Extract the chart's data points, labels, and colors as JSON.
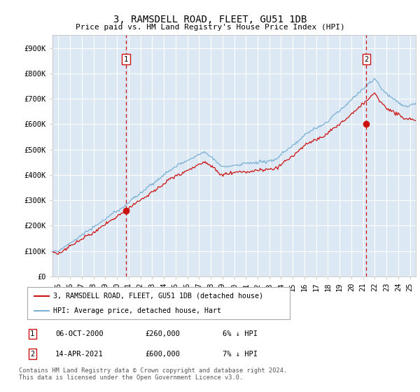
{
  "title": "3, RAMSDELL ROAD, FLEET, GU51 1DB",
  "subtitle": "Price paid vs. HM Land Registry's House Price Index (HPI)",
  "ylabel_ticks": [
    "£0",
    "£100K",
    "£200K",
    "£300K",
    "£400K",
    "£500K",
    "£600K",
    "£700K",
    "£800K",
    "£900K"
  ],
  "ytick_values": [
    0,
    100000,
    200000,
    300000,
    400000,
    500000,
    600000,
    700000,
    800000,
    900000
  ],
  "ylim": [
    0,
    950000
  ],
  "xlim_start": 1994.5,
  "xlim_end": 2025.5,
  "plot_bg_color": "#dce9f5",
  "grid_color": "#ffffff",
  "hpi_color": "#7ab0d4",
  "price_color": "#cc1111",
  "vline_color": "#cc1111",
  "marker1_x": 2000.77,
  "marker1_y": 260000,
  "marker2_x": 2021.28,
  "marker2_y": 600000,
  "legend_line1": "3, RAMSDELL ROAD, FLEET, GU51 1DB (detached house)",
  "legend_line2": "HPI: Average price, detached house, Hart",
  "annotation1_date": "06-OCT-2000",
  "annotation1_price": "£260,000",
  "annotation1_hpi": "6% ↓ HPI",
  "annotation2_date": "14-APR-2021",
  "annotation2_price": "£600,000",
  "annotation2_hpi": "7% ↓ HPI",
  "footer": "Contains HM Land Registry data © Crown copyright and database right 2024.\nThis data is licensed under the Open Government Licence v3.0.",
  "xtick_years": [
    1995,
    1996,
    1997,
    1998,
    1999,
    2000,
    2001,
    2002,
    2003,
    2004,
    2005,
    2006,
    2007,
    2008,
    2009,
    2010,
    2011,
    2012,
    2013,
    2014,
    2015,
    2016,
    2017,
    2018,
    2019,
    2020,
    2021,
    2022,
    2023,
    2024,
    2025
  ]
}
